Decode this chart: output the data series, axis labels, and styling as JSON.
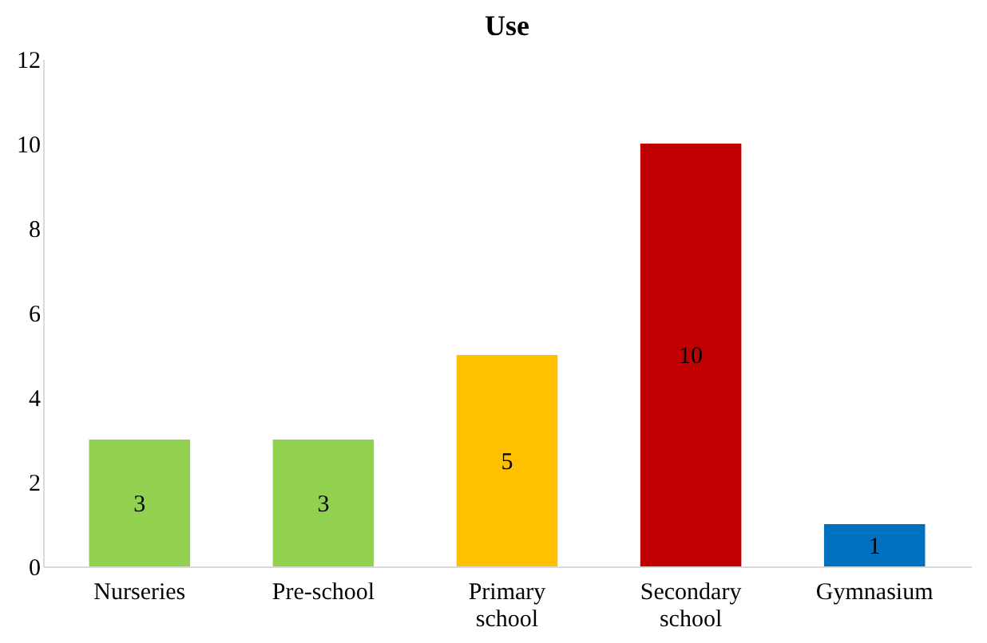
{
  "chart_data": {
    "type": "bar",
    "title": "Use",
    "categories": [
      "Nurseries",
      "Pre-school",
      "Primary school",
      "Secondary school",
      "Gymnasium"
    ],
    "values": [
      3,
      3,
      5,
      10,
      1
    ],
    "colors": [
      "#92d050",
      "#92d050",
      "#ffc000",
      "#c00000",
      "#0070c0"
    ],
    "ylim": [
      0,
      12
    ],
    "yticks": [
      0,
      2,
      4,
      6,
      8,
      10,
      12
    ],
    "grid": false,
    "data_labels": true
  }
}
